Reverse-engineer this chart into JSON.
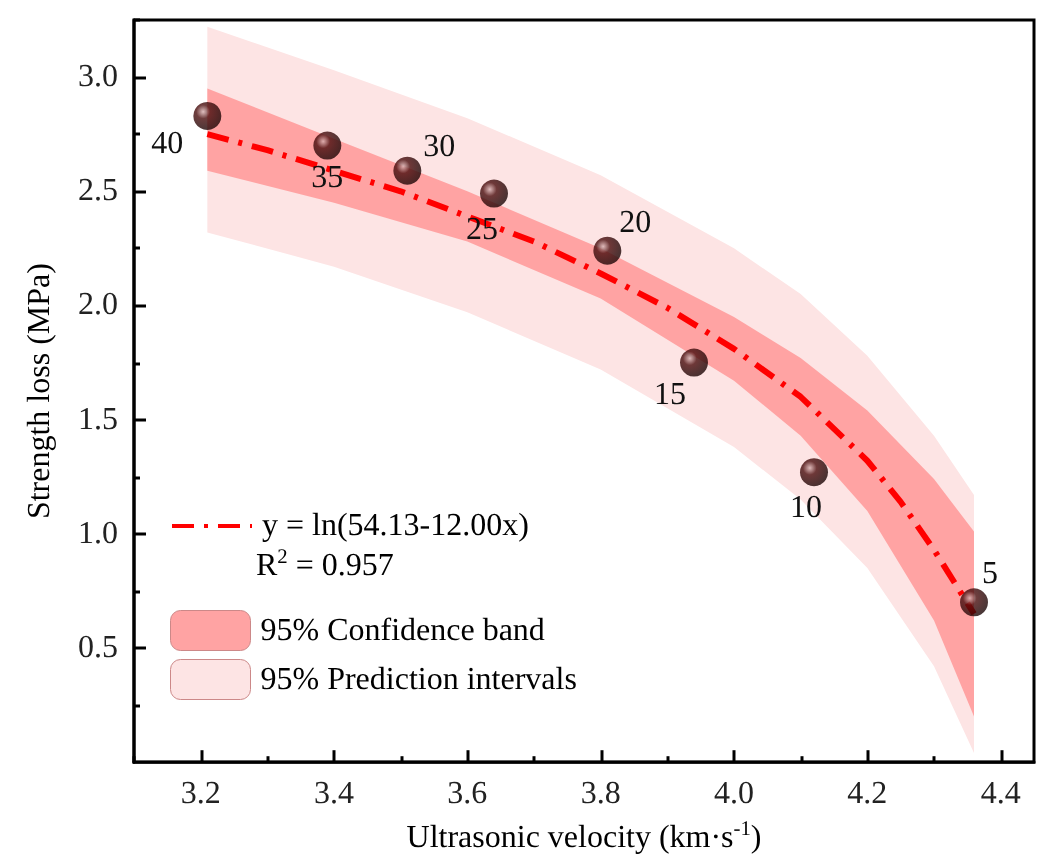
{
  "chart_data": {
    "type": "scatter",
    "xlabel": "Ultrasonic velocity (km·s$^{-1}$)",
    "ylabel": "Strength loss (MPa)",
    "xlim": [
      3.1,
      4.45
    ],
    "xticks": [
      3.2,
      3.4,
      3.6,
      3.8,
      {
        "value": 4,
        "label": "4.0"
      },
      4.2,
      4.4
    ],
    "ylim": [
      0,
      3.25
    ],
    "yticks": [
      0.5,
      {
        "value": 1,
        "label": "1.0"
      },
      1.5,
      {
        "value": 2,
        "label": "2.0"
      },
      2.5,
      {
        "value": 3,
        "label": "3.0"
      }
    ],
    "grid": false,
    "legend": "bottom left",
    "marker": "circle",
    "series": [
      {
        "type": "area",
        "name": "95% Prediction intervals",
        "color": "#fde4e4",
        "x": [
          3.21,
          3.4,
          3.6,
          3.8,
          4.0,
          4.1,
          4.2,
          4.3,
          4.36
        ],
        "values": [
          null,
          null,
          null,
          null,
          null,
          null,
          null,
          null,
          null
        ],
        "lower": [
          2.32,
          2.17,
          1.97,
          1.72,
          1.38,
          1.15,
          0.85,
          0.42,
          0.04
        ],
        "upper": [
          3.22,
          3.03,
          2.82,
          2.57,
          2.25,
          2.05,
          1.78,
          1.43,
          1.17
        ]
      },
      {
        "type": "area",
        "name": "95% Confidence band",
        "color": "#ffa3a3",
        "x": [
          3.21,
          3.4,
          3.6,
          3.8,
          4.0,
          4.1,
          4.2,
          4.3,
          4.36
        ],
        "values": [
          null,
          null,
          null,
          null,
          null,
          null,
          null,
          null,
          null
        ],
        "lower": [
          2.59,
          2.45,
          2.28,
          2.03,
          1.67,
          1.43,
          1.1,
          0.62,
          0.2
        ],
        "upper": [
          2.95,
          2.73,
          2.5,
          2.25,
          1.95,
          1.77,
          1.54,
          1.24,
          1.01
        ]
      },
      {
        "type": "line",
        "name": "y = ln(54.13-12.00x)",
        "color": "#ff0000",
        "line_style": "dashed",
        "marker": "none",
        "x": [
          3.21,
          3.3,
          3.4,
          3.5,
          3.6,
          3.7,
          3.8,
          3.9,
          4.0,
          4.1,
          4.2,
          4.25,
          4.3,
          4.36
        ],
        "values": [
          2.75,
          2.68,
          2.59,
          2.5,
          2.39,
          2.28,
          2.14,
          1.99,
          1.81,
          1.6,
          1.32,
          1.14,
          0.93,
          0.65
        ]
      },
      {
        "color": "#4a0d0d",
        "x": [
          3.21,
          3.39,
          3.51,
          3.64,
          3.81,
          3.94,
          4.12,
          4.36
        ],
        "values": [
          2.83,
          2.7,
          2.59,
          2.49,
          2.24,
          1.75,
          1.27,
          0.7
        ]
      }
    ],
    "annotations": [
      "R$^{2}$ = 0.957",
      {
        "text": "40",
        "x": 3.21,
        "y": 2.83
      },
      {
        "text": "35",
        "x": 3.39,
        "y": 2.7
      },
      {
        "text": "30",
        "x": 3.51,
        "y": 2.59
      },
      {
        "text": "25",
        "x": 3.64,
        "y": 2.49
      },
      {
        "text": "20",
        "x": 3.81,
        "y": 2.24
      },
      {
        "text": "15",
        "x": 3.94,
        "y": 1.75
      },
      {
        "text": "10",
        "x": 4.12,
        "y": 1.27
      },
      {
        "text": "5",
        "x": 4.36,
        "y": 0.7
      }
    ]
  }
}
